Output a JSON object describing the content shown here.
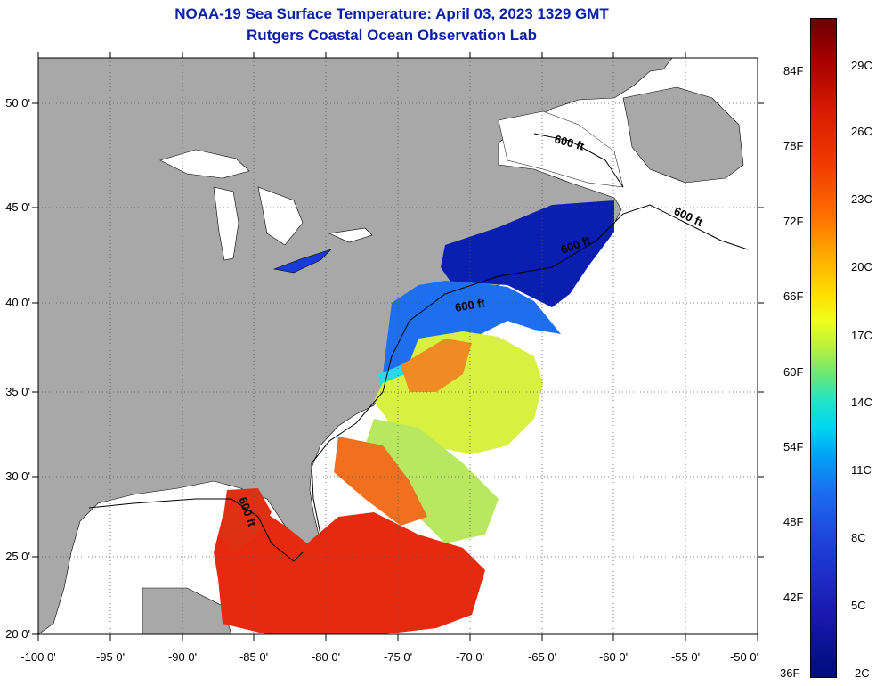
{
  "title_line1": "NOAA-19 Sea Surface Temperature:  April 03, 2023 1329 GMT",
  "title_line2": "Rutgers Coastal Ocean Observation Lab",
  "lat_labels": [
    "50 0'",
    "45 0'",
    "40 0'",
    "35 0'",
    "30 0'",
    "25 0'",
    "20 0'"
  ],
  "lon_labels": [
    "-100 0'",
    "-95 0'",
    "-90 0'",
    "-85 0'",
    "-80 0'",
    "-75 0'",
    "-70 0'",
    "-65 0'",
    "-60 0'",
    "-55 0'",
    "-50 0'"
  ],
  "isobath_labels": [
    "600 ft",
    "600 ft",
    "600 ft",
    "600 ft",
    "600 ft"
  ],
  "colorbar": {
    "fahrenheit": [
      "84F",
      "78F",
      "72F",
      "66F",
      "60F",
      "54F",
      "48F",
      "42F",
      "36F"
    ],
    "celsius": [
      "29C",
      "26C",
      "23C",
      "20C",
      "17C",
      "14C",
      "11C",
      "8C",
      "5C",
      "2C"
    ]
  },
  "colors": {
    "land": "#a8a8a8",
    "ocean_nodata": "#ffffff",
    "title": "#0b1fa8"
  }
}
